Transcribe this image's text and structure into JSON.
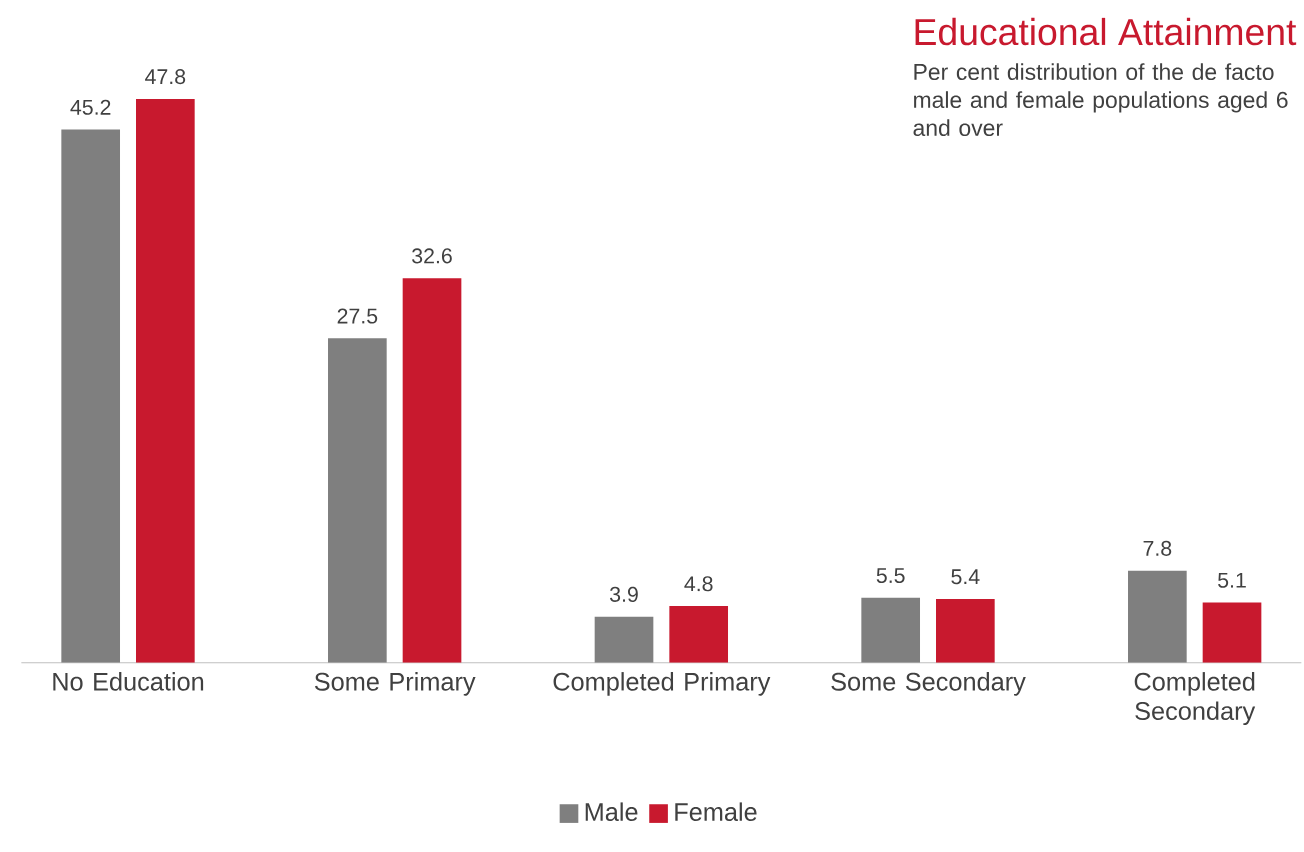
{
  "chart_data": {
    "type": "bar",
    "title": "Educational Attainment",
    "subtitle": "Per cent distribution of the de facto male and female populations aged 6 and over",
    "categories": [
      "No Education",
      "Some Primary",
      "Completed Primary",
      "Some Secondary",
      "Completed Secondary"
    ],
    "series": [
      {
        "name": "Male",
        "color": "#7f7f7f",
        "values": [
          45.2,
          27.5,
          3.9,
          5.5,
          7.8
        ]
      },
      {
        "name": "Female",
        "color": "#c8192e",
        "values": [
          47.8,
          32.6,
          4.8,
          5.4,
          5.1
        ]
      }
    ],
    "data_labels": true,
    "legend": "bottom",
    "tick_labels": "x"
  }
}
